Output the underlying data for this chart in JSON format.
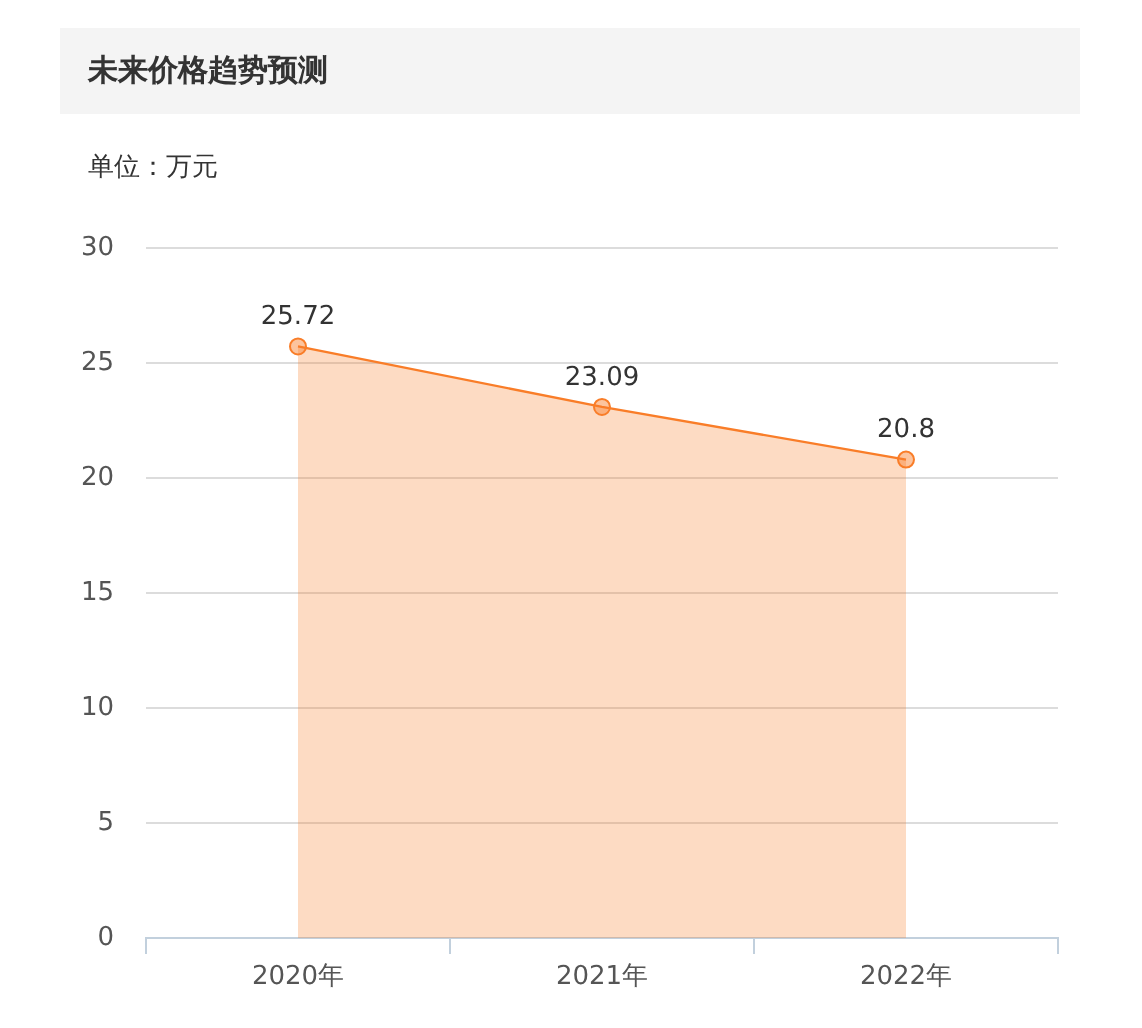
{
  "chart_data": {
    "type": "area",
    "title": "未来价格趋势预测",
    "ylabel": "单位：万元",
    "categories": [
      "2020年",
      "2021年",
      "2022年"
    ],
    "series": [
      {
        "color": "#f97d28",
        "values": [
          25.72,
          23.09,
          20.8
        ]
      }
    ],
    "ylim": [
      0,
      30
    ],
    "yticks": [
      0,
      5,
      10,
      15,
      20,
      25,
      30
    ],
    "grid": "y",
    "data_labels": true,
    "marker": "circle"
  }
}
